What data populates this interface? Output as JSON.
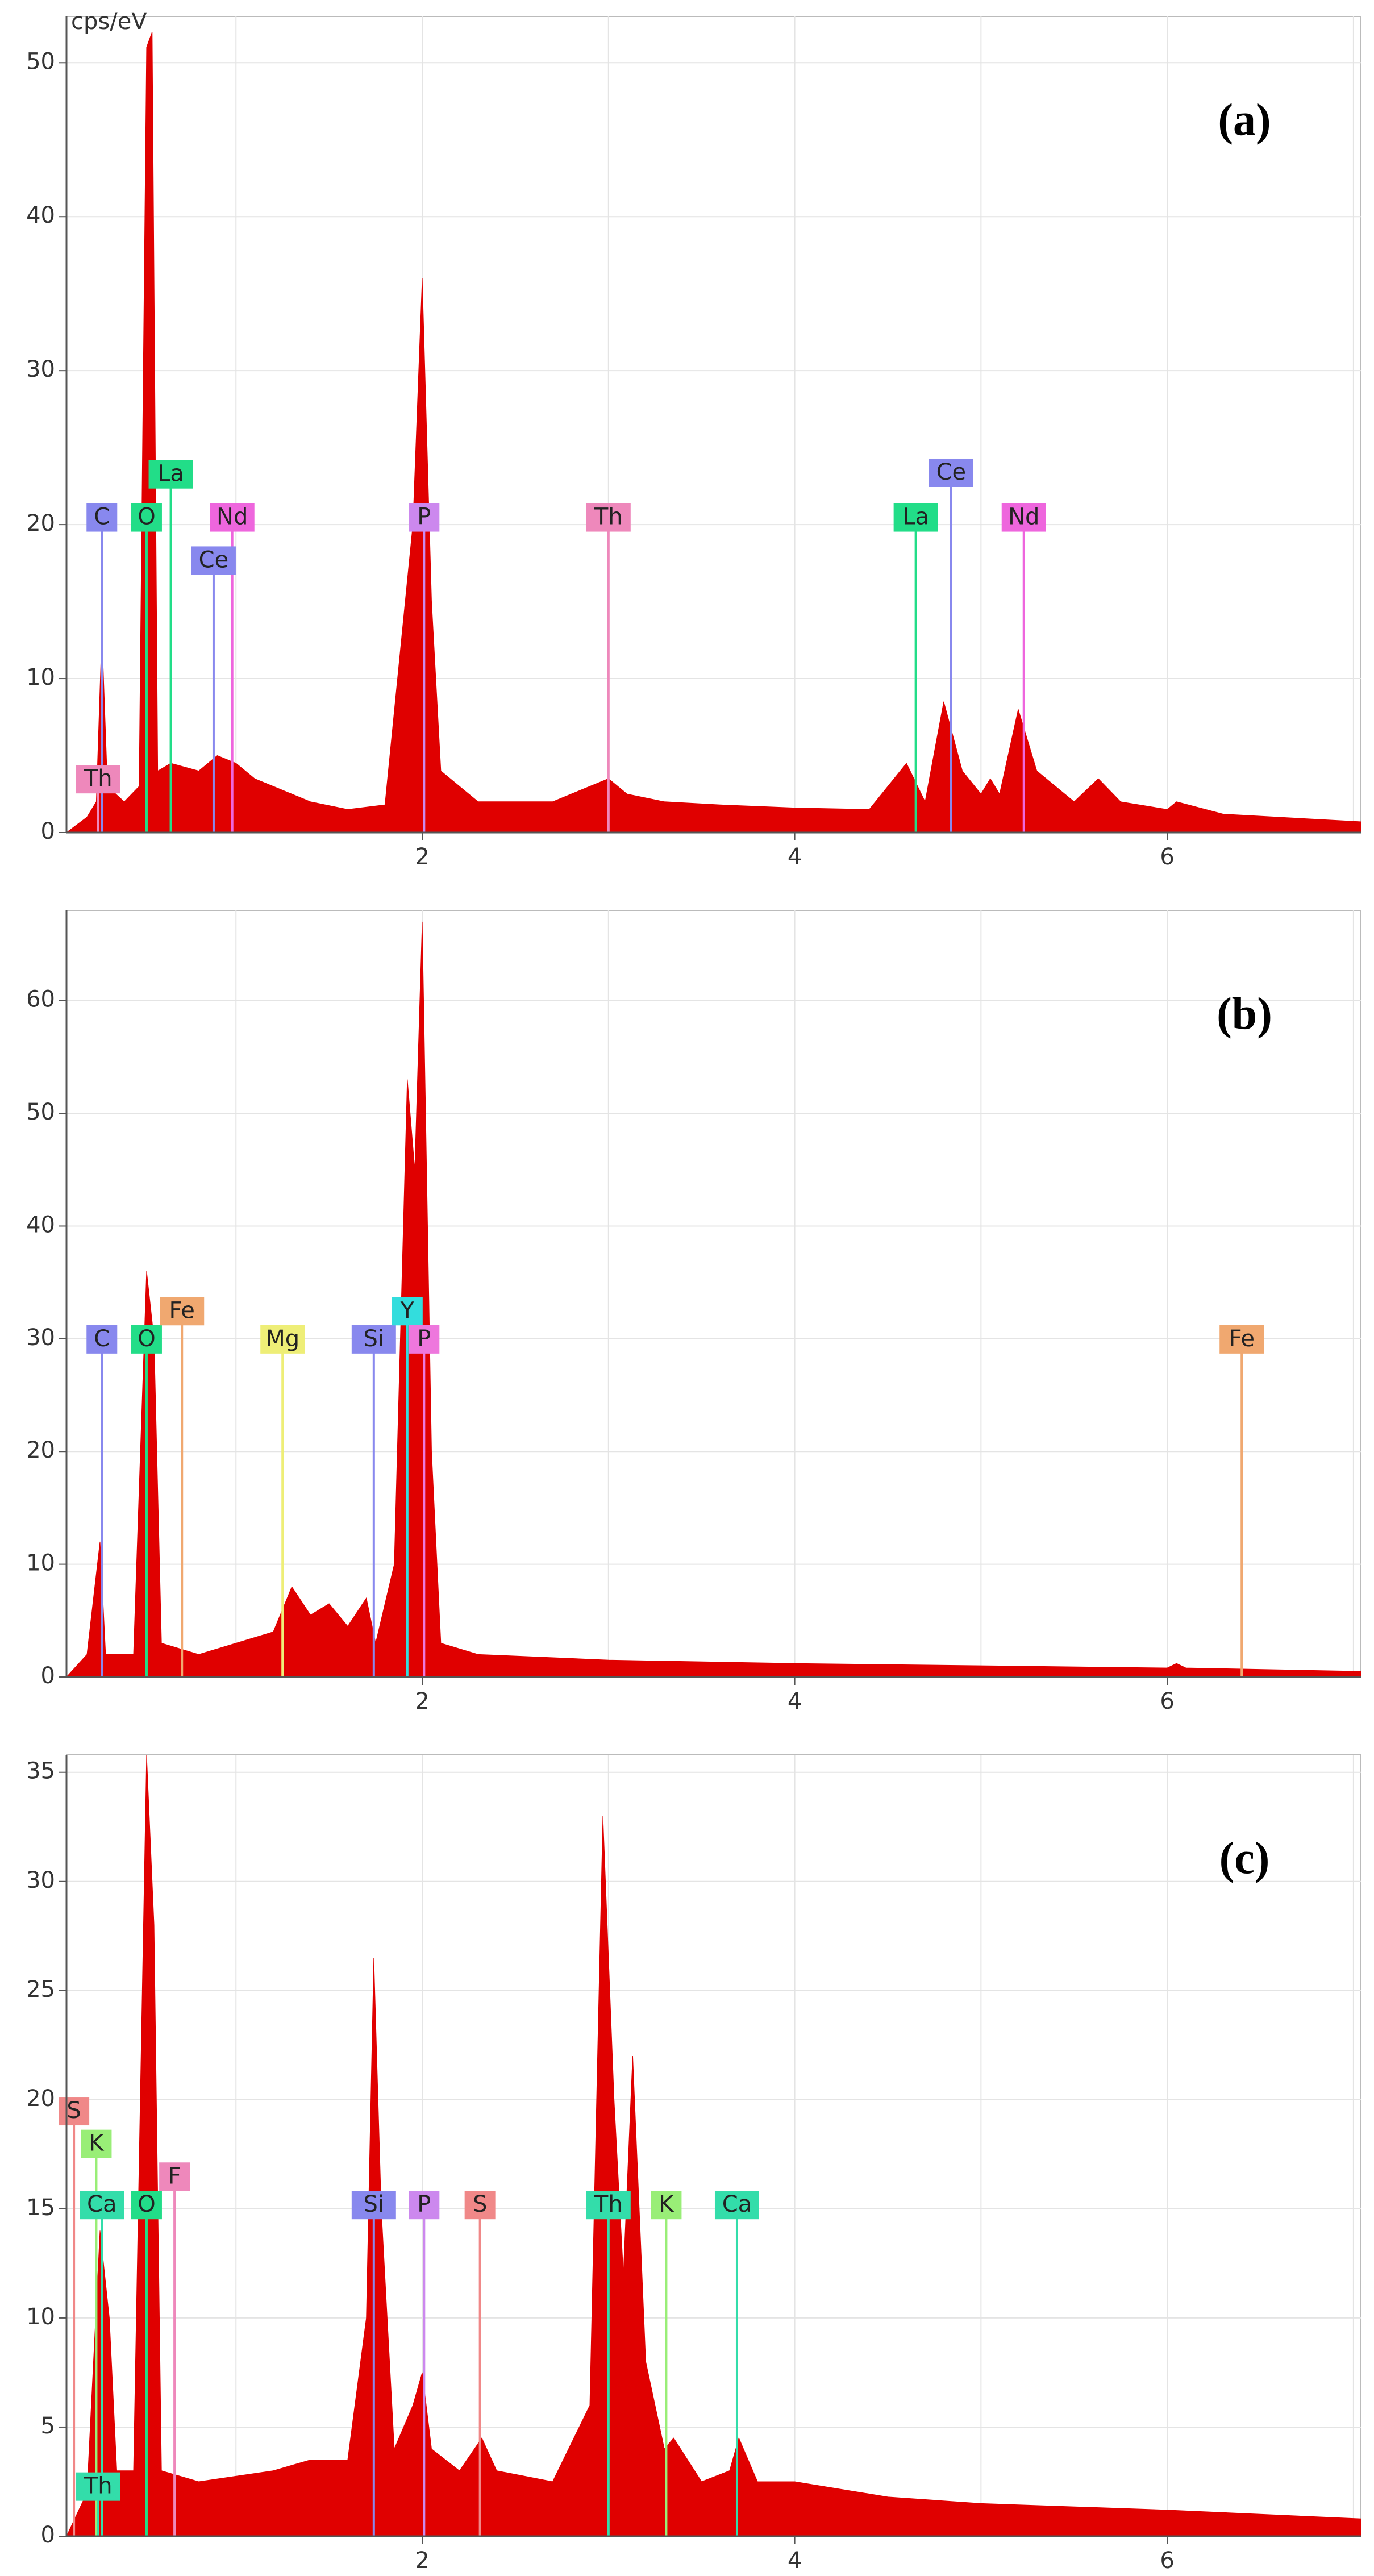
{
  "chart_data": [
    {
      "type": "area",
      "panel": "(a)",
      "y_label": "cps/eV",
      "color": "#e00000",
      "xlim": [
        0.09,
        7.04
      ],
      "xticks": [
        2,
        4,
        6
      ],
      "xminor": [
        1,
        3,
        5,
        7
      ],
      "ylim": [
        0,
        53
      ],
      "yticks": [
        0,
        10,
        20,
        30,
        40,
        50
      ],
      "grid": true,
      "x": [
        0.09,
        0.2,
        0.25,
        0.28,
        0.31,
        0.4,
        0.48,
        0.52,
        0.55,
        0.58,
        0.65,
        0.8,
        0.9,
        1.0,
        1.1,
        1.2,
        1.4,
        1.6,
        1.8,
        1.95,
        2.0,
        2.05,
        2.1,
        2.3,
        2.7,
        3.0,
        3.1,
        3.3,
        3.6,
        4.0,
        4.4,
        4.6,
        4.7,
        4.8,
        4.9,
        5.0,
        5.05,
        5.1,
        5.2,
        5.3,
        5.5,
        5.63,
        5.75,
        6.0,
        6.05,
        6.3,
        7.04
      ],
      "values": [
        0,
        1,
        2,
        13,
        3,
        2,
        3,
        51,
        52,
        4,
        4.5,
        4,
        5,
        4.5,
        3.5,
        3,
        2,
        1.5,
        1.8,
        20,
        36,
        15,
        4,
        2,
        2,
        3.5,
        2.5,
        2,
        1.8,
        1.6,
        1.5,
        4.5,
        2,
        8.5,
        4,
        2.5,
        3.5,
        2.5,
        8,
        4,
        2,
        3.5,
        2,
        1.5,
        2,
        1.2,
        0.7
      ],
      "markers": [
        {
          "label": "C",
          "x": 0.28,
          "y": 20.5,
          "color": "#8888ee"
        },
        {
          "label": "O",
          "x": 0.52,
          "y": 20.5,
          "color": "#22dd88"
        },
        {
          "label": "La",
          "x": 0.65,
          "y": 23.3,
          "color": "#22dd88"
        },
        {
          "label": "Nd",
          "x": 0.98,
          "y": 20.5,
          "color": "#ee66dd"
        },
        {
          "label": "Ce",
          "x": 0.88,
          "y": 17.7,
          "color": "#8888ee"
        },
        {
          "label": "P",
          "x": 2.01,
          "y": 20.5,
          "color": "#cc88ee"
        },
        {
          "label": "Th",
          "x": 3.0,
          "y": 20.5,
          "color": "#ee88bb"
        },
        {
          "label": "La",
          "x": 4.65,
          "y": 20.5,
          "color": "#22dd88"
        },
        {
          "label": "Ce",
          "x": 4.84,
          "y": 23.4,
          "color": "#8888ee"
        },
        {
          "label": "Nd",
          "x": 5.23,
          "y": 20.5,
          "color": "#ee66dd"
        },
        {
          "label": "Th",
          "x": 0.26,
          "y": 3.5,
          "color": "#ee88bb"
        }
      ]
    },
    {
      "type": "area",
      "panel": "(b)",
      "color": "#e00000",
      "xlim": [
        0.09,
        7.04
      ],
      "xticks": [
        2,
        4,
        6
      ],
      "xminor": [
        1,
        3,
        5,
        7
      ],
      "ylim": [
        0,
        68
      ],
      "yticks": [
        0,
        10,
        20,
        30,
        40,
        50,
        60
      ],
      "grid": true,
      "x": [
        0.09,
        0.2,
        0.27,
        0.3,
        0.45,
        0.52,
        0.56,
        0.6,
        0.8,
        1.0,
        1.2,
        1.3,
        1.4,
        1.5,
        1.6,
        1.7,
        1.75,
        1.85,
        1.92,
        1.96,
        2.0,
        2.05,
        2.1,
        2.3,
        3.0,
        4.0,
        5.0,
        6.0,
        6.05,
        6.1,
        7.04
      ],
      "values": [
        0,
        2,
        12,
        2,
        2,
        36,
        30,
        3,
        2,
        3,
        4,
        8,
        5.5,
        6.5,
        4.5,
        7,
        3,
        10,
        53,
        45,
        67,
        20,
        3,
        2,
        1.5,
        1.2,
        1,
        0.8,
        1.2,
        0.8,
        0.5
      ],
      "markers": [
        {
          "label": "C",
          "x": 0.28,
          "y": 30,
          "color": "#8888ee"
        },
        {
          "label": "O",
          "x": 0.52,
          "y": 30,
          "color": "#22dd88"
        },
        {
          "label": "Fe",
          "x": 0.71,
          "y": 32.5,
          "color": "#f0a870"
        },
        {
          "label": "Mg",
          "x": 1.25,
          "y": 30,
          "color": "#eeee77"
        },
        {
          "label": "Si",
          "x": 1.74,
          "y": 30,
          "color": "#8888ee"
        },
        {
          "label": "Y",
          "x": 1.92,
          "y": 32.5,
          "color": "#33dddd"
        },
        {
          "label": "P",
          "x": 2.01,
          "y": 30,
          "color": "#ee77dd"
        },
        {
          "label": "Fe",
          "x": 6.4,
          "y": 30,
          "color": "#f0a870"
        }
      ]
    },
    {
      "type": "area",
      "panel": "(c)",
      "color": "#e00000",
      "xlim": [
        0.09,
        7.04
      ],
      "xticks": [
        2,
        4,
        6
      ],
      "xminor": [
        1,
        3,
        5,
        7
      ],
      "ylim": [
        0,
        35.8
      ],
      "yticks": [
        0,
        5,
        10,
        15,
        20,
        25,
        30,
        35
      ],
      "grid": true,
      "x": [
        0.09,
        0.2,
        0.27,
        0.32,
        0.36,
        0.45,
        0.52,
        0.56,
        0.6,
        0.8,
        1.2,
        1.4,
        1.6,
        1.7,
        1.74,
        1.78,
        1.85,
        1.95,
        2.0,
        2.05,
        2.2,
        2.32,
        2.4,
        2.7,
        2.9,
        2.97,
        3.03,
        3.08,
        3.13,
        3.2,
        3.3,
        3.35,
        3.5,
        3.65,
        3.7,
        3.8,
        4.0,
        4.5,
        5.0,
        6.0,
        7.04
      ],
      "values": [
        0,
        2,
        14,
        10,
        3,
        3,
        35.8,
        28,
        3,
        2.5,
        3,
        3.5,
        3.5,
        10,
        26.5,
        15,
        4,
        6,
        7.5,
        4,
        3,
        4.5,
        3,
        2.5,
        6,
        33,
        20,
        12,
        22,
        8,
        4,
        4.5,
        2.5,
        3,
        4.5,
        2.5,
        2.5,
        1.8,
        1.5,
        1.2,
        0.8
      ],
      "markers": [
        {
          "label": "S",
          "x": 0.13,
          "y": 19.5,
          "color": "#f08888"
        },
        {
          "label": "K",
          "x": 0.25,
          "y": 18,
          "color": "#99ee77"
        },
        {
          "label": "Ca",
          "x": 0.28,
          "y": 15.2,
          "color": "#33ddaa"
        },
        {
          "label": "O",
          "x": 0.52,
          "y": 15.2,
          "color": "#22dd88"
        },
        {
          "label": "F",
          "x": 0.67,
          "y": 16.5,
          "color": "#ee88bb"
        },
        {
          "label": "Si",
          "x": 1.74,
          "y": 15.2,
          "color": "#8888ee"
        },
        {
          "label": "P",
          "x": 2.01,
          "y": 15.2,
          "color": "#cc88ee"
        },
        {
          "label": "S",
          "x": 2.31,
          "y": 15.2,
          "color": "#f08888"
        },
        {
          "label": "Th",
          "x": 3.0,
          "y": 15.2,
          "color": "#33ddaa"
        },
        {
          "label": "K",
          "x": 3.31,
          "y": 15.2,
          "color": "#99ee77"
        },
        {
          "label": "Ca",
          "x": 3.69,
          "y": 15.2,
          "color": "#33ddaa"
        },
        {
          "label": "Th",
          "x": 0.26,
          "y": 2.3,
          "color": "#33ddaa"
        }
      ]
    }
  ]
}
